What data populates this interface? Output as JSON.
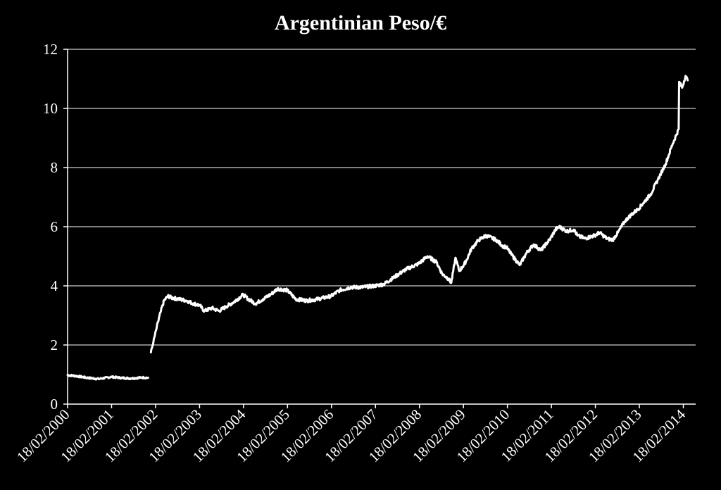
{
  "chart_data": {
    "type": "line",
    "title": "Argentinian Peso/€",
    "xlabel": "",
    "ylabel": "",
    "ylim": [
      0,
      12
    ],
    "yticks": [
      "0",
      "2",
      "4",
      "6",
      "8",
      "10",
      "12"
    ],
    "xticks": [
      "18/02/2000",
      "18/02/2001",
      "18/02/2002",
      "18/02/2003",
      "18/02/2004",
      "18/02/2005",
      "18/02/2006",
      "18/02/2007",
      "18/02/2008",
      "18/02/2009",
      "18/02/2010",
      "18/02/2011",
      "18/02/2012",
      "18/02/2013",
      "18/02/2014"
    ],
    "grid": true,
    "colors": {
      "background": "#000000",
      "line": "#ffffff",
      "grid": "#ffffff"
    },
    "series": [
      {
        "segments": [
          {
            "x": [
              "2000-02-18",
              "2000-05-01",
              "2000-08-01",
              "2000-11-01",
              "2001-02-18",
              "2001-05-01",
              "2001-08-01",
              "2001-11-01",
              "2001-12-20"
            ],
            "y": [
              0.98,
              0.95,
              0.89,
              0.85,
              0.92,
              0.89,
              0.87,
              0.9,
              0.89
            ]
          },
          {
            "x": [
              "2002-01-11",
              "2002-02-01",
              "2002-03-01",
              "2002-04-01",
              "2002-05-01",
              "2002-06-01",
              "2002-07-01",
              "2002-09-01",
              "2002-11-01",
              "2003-01-01",
              "2003-02-18",
              "2003-04-01",
              "2003-06-01",
              "2003-08-01",
              "2003-10-01",
              "2003-12-01",
              "2004-02-18",
              "2004-04-01",
              "2004-06-01",
              "2004-08-01",
              "2004-10-01",
              "2004-12-01",
              "2005-02-18",
              "2005-05-01",
              "2005-08-01",
              "2005-11-01",
              "2006-02-18",
              "2006-05-01",
              "2006-08-01",
              "2006-11-01",
              "2007-02-18",
              "2007-05-01",
              "2007-08-01",
              "2007-11-01",
              "2008-02-18",
              "2008-05-01",
              "2008-07-15",
              "2008-09-01",
              "2008-10-20",
              "2008-11-15",
              "2008-12-20",
              "2009-01-20",
              "2009-02-18",
              "2009-03-20",
              "2009-05-01",
              "2009-07-01",
              "2009-09-01",
              "2009-11-25",
              "2010-01-15",
              "2010-02-18",
              "2010-04-01",
              "2010-06-08",
              "2010-08-01",
              "2010-10-01",
              "2010-12-01",
              "2011-02-18",
              "2011-04-01",
              "2011-05-01",
              "2011-07-01",
              "2011-09-01",
              "2011-10-01",
              "2011-12-01",
              "2012-02-18",
              "2012-04-01",
              "2012-06-01",
              "2012-07-20",
              "2012-09-01",
              "2012-11-01",
              "2012-12-20",
              "2013-02-18",
              "2013-04-01",
              "2013-06-01",
              "2013-08-01",
              "2013-10-01",
              "2013-12-01",
              "2014-01-20",
              "2014-01-24",
              "2014-02-18",
              "2014-03-18",
              "2014-04-05"
            ],
            "y": [
              1.75,
              2.1,
              2.6,
              3.1,
              3.5,
              3.65,
              3.6,
              3.55,
              3.5,
              3.4,
              3.35,
              3.15,
              3.25,
              3.15,
              3.3,
              3.45,
              3.7,
              3.55,
              3.4,
              3.55,
              3.7,
              3.9,
              3.85,
              3.55,
              3.5,
              3.55,
              3.65,
              3.85,
              3.95,
              3.95,
              4.0,
              4.05,
              4.3,
              4.55,
              4.75,
              5.0,
              4.8,
              4.4,
              4.25,
              4.1,
              4.95,
              4.5,
              4.65,
              4.85,
              5.25,
              5.55,
              5.7,
              5.55,
              5.35,
              5.3,
              5.05,
              4.7,
              5.1,
              5.4,
              5.2,
              5.6,
              5.9,
              6.0,
              5.85,
              5.9,
              5.7,
              5.6,
              5.7,
              5.8,
              5.6,
              5.55,
              5.8,
              6.2,
              6.4,
              6.6,
              6.8,
              7.1,
              7.6,
              8.1,
              8.8,
              9.3,
              10.9,
              10.7,
              11.1,
              10.95
            ]
          }
        ]
      }
    ]
  }
}
